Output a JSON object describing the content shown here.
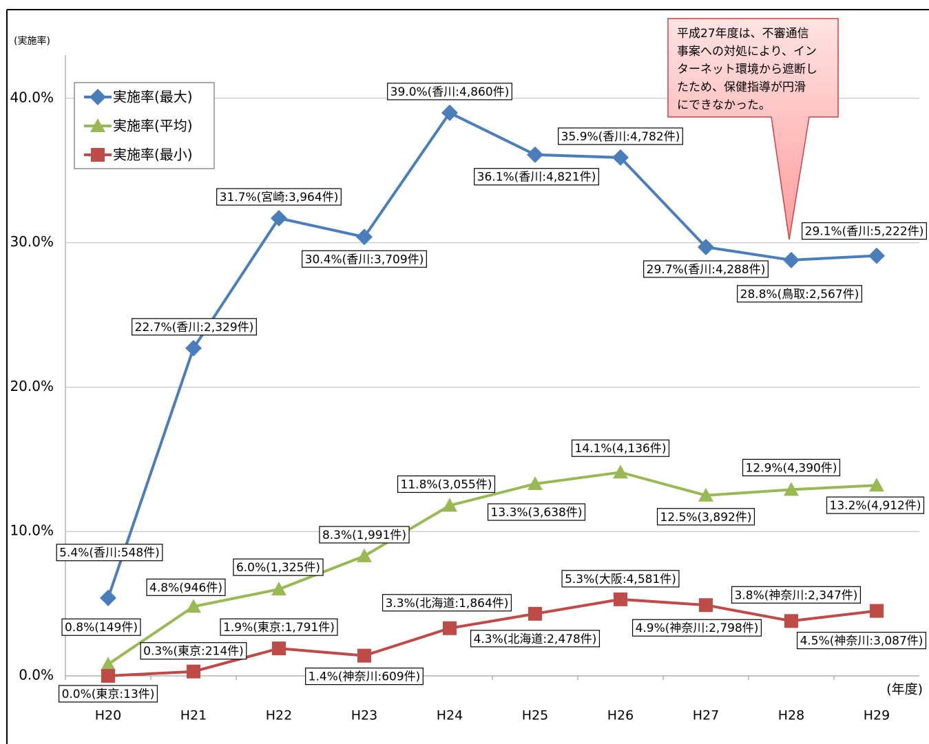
{
  "chart_data": {
    "type": "line",
    "y_axis_label": "(実施率)",
    "x_axis_label": "(年度)",
    "categories": [
      "H20",
      "H21",
      "H22",
      "H23",
      "H24",
      "H25",
      "H26",
      "H27",
      "H28",
      "H29"
    ],
    "series": [
      {
        "name": "実施率(最大)",
        "color": "#4a7ebb",
        "marker": "diamond",
        "values": [
          5.4,
          22.7,
          31.7,
          30.4,
          39.0,
          36.1,
          35.9,
          29.7,
          28.8,
          29.1
        ],
        "value_labels": [
          "5.4%(香川:548件)",
          "22.7%(香川:2,329件)",
          "31.7%(宮崎:3,964件)",
          "30.4%(香川:3,709件)",
          "39.0%(香川:4,860件)",
          "36.1%(香川:4,821件)",
          "35.9%(香川:4,782件)",
          "29.7%(香川:4,288件)",
          "28.8%(鳥取:2,567件)",
          "29.1%(香川:5,222件)"
        ]
      },
      {
        "name": "実施率(平均)",
        "color": "#98b954",
        "marker": "triangle",
        "values": [
          0.8,
          4.8,
          6.0,
          8.3,
          11.8,
          13.3,
          14.1,
          12.5,
          12.9,
          13.2
        ],
        "value_labels": [
          "0.8%(149件)",
          "4.8%(946件)",
          "6.0%(1,325件)",
          "8.3%(1,991件)",
          "11.8%(3,055件)",
          "13.3%(3,638件)",
          "14.1%(4,136件)",
          "12.5%(3,892件)",
          "12.9%(4,390件)",
          "13.2%(4,912件)"
        ]
      },
      {
        "name": "実施率(最小)",
        "color": "#be4b48",
        "marker": "square",
        "values": [
          0.0,
          0.3,
          1.9,
          1.4,
          3.3,
          4.3,
          5.3,
          4.9,
          3.8,
          4.5
        ],
        "value_labels": [
          "0.0%(東京:13件)",
          "0.3%(東京:214件)",
          "1.9%(東京:1,791件)",
          "1.4%(神奈川:609件)",
          "3.3%(北海道:1,864件)",
          "4.3%(北海道:2,478件)",
          "5.3%(大阪:4,581件)",
          "4.9%(神奈川:2,798件)",
          "3.8%(神奈川:2,347件)",
          "4.5%(神奈川:3,087件)"
        ]
      }
    ],
    "ylim": [
      0,
      43
    ],
    "yticks": [
      {
        "value": 0,
        "label": "0.0%"
      },
      {
        "value": 10,
        "label": "10.0%"
      },
      {
        "value": 20,
        "label": "20.0%"
      },
      {
        "value": 30,
        "label": "30.0%"
      },
      {
        "value": 40,
        "label": "40.0%"
      }
    ],
    "grid": true,
    "legend": "upper left",
    "annotation": {
      "lines": [
        "平成27年度は、不審通信",
        "事案への対処により、イン",
        "ターネット環境から遮断し",
        "たため、保健指導が円滑",
        "にできなかった。"
      ]
    }
  }
}
